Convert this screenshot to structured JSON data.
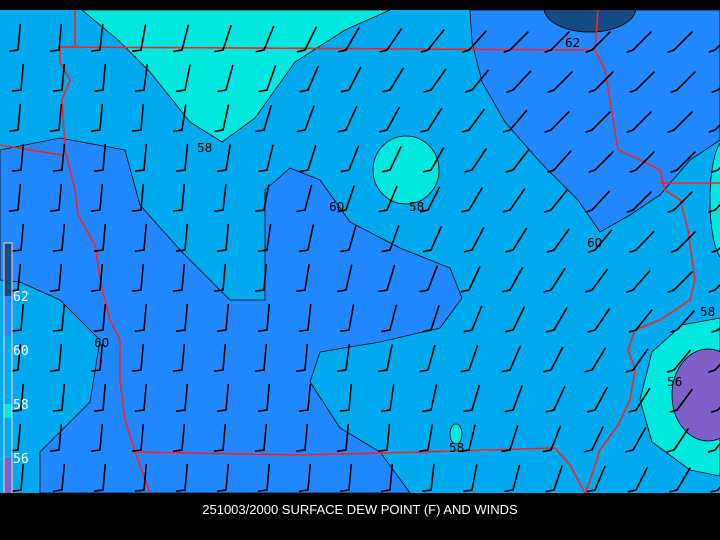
{
  "title": "251003/2000 SURFACE DEW POINT (F) AND WINDS",
  "colors": {
    "background": "#000000",
    "level_62_plus": "#154a82",
    "level_60_62": "#2288ff",
    "level_58_60": "#00aaee",
    "level_56_58": "#00e8e0",
    "level_below_56": "#8060c8",
    "state_border": "#ff2020",
    "contour": "#000000",
    "wind_barb": "#000000"
  },
  "legend": {
    "labels": [
      "62",
      "60",
      "58",
      "56"
    ]
  },
  "contour_labels": [
    "62",
    "58",
    "60",
    "58",
    "60",
    "58",
    "60",
    "56",
    "58"
  ]
}
